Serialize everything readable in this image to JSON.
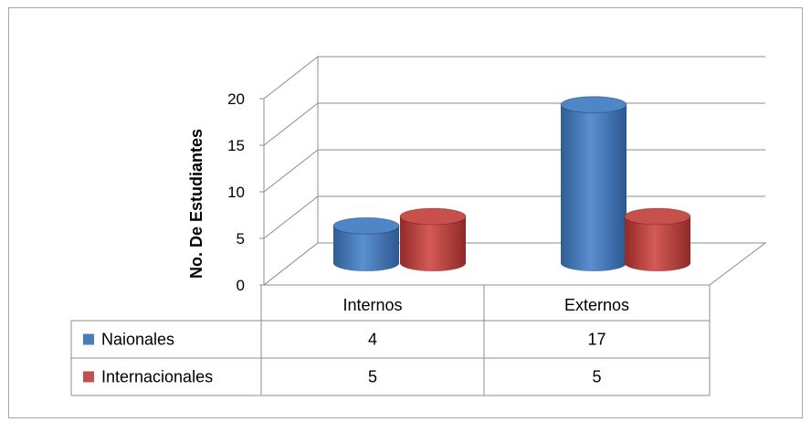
{
  "chart_data": {
    "type": "bar",
    "categories": [
      "Internos",
      "Externos"
    ],
    "series": [
      {
        "name": "Naionales",
        "values": [
          4,
          17
        ],
        "color": "#4a7ebb"
      },
      {
        "name": "Internacionales",
        "values": [
          5,
          5
        ],
        "color": "#c0504d"
      }
    ],
    "ylabel": "No. De Estudiantes",
    "xlabel": "",
    "ylim": [
      0,
      20
    ],
    "yticks": [
      0,
      5,
      10,
      15,
      20
    ],
    "grid": true,
    "legend": "data-table",
    "style": "3d-cylinder"
  }
}
